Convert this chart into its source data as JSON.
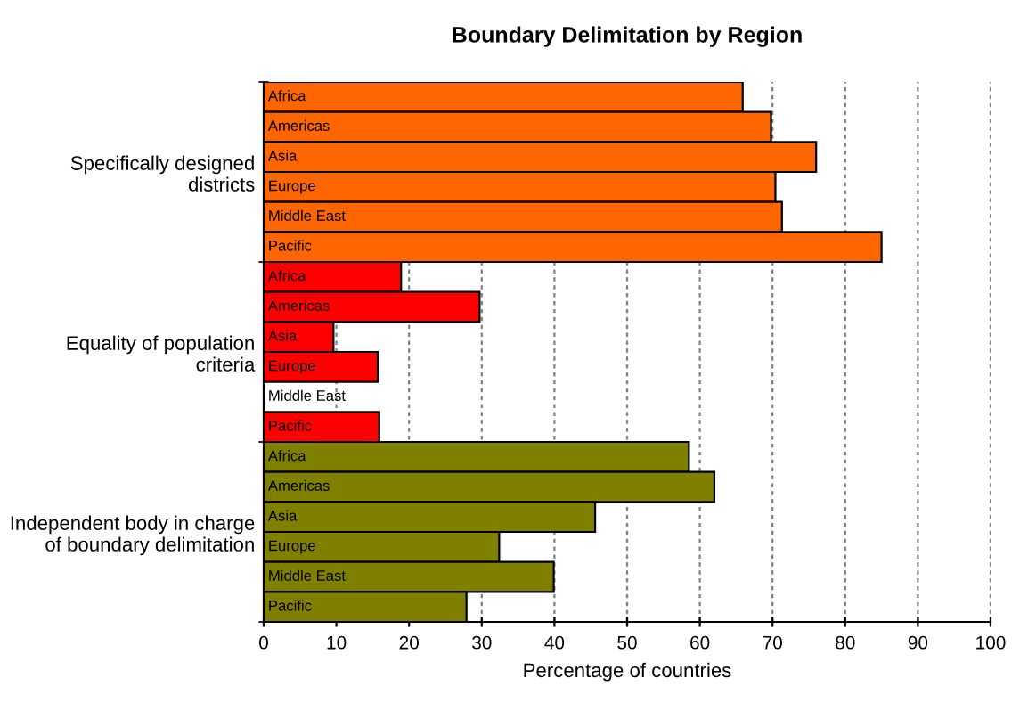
{
  "chart_data": {
    "type": "bar",
    "orientation": "horizontal",
    "title": "Boundary Delimitation by Region",
    "xlabel": "Percentage of countries",
    "categories": [
      "Specifically designed\ndistricts",
      "Equality of population\ncriteria",
      "Independent body in charge\nof boundary delimitation"
    ],
    "series": [
      {
        "name": "Africa",
        "colors": [
          "#ff6600",
          "#ff0000",
          "#808000"
        ],
        "values": [
          65.9,
          18.9,
          58.5
        ]
      },
      {
        "name": "Americas",
        "colors": [
          "#ff6600",
          "#ff0000",
          "#808000"
        ],
        "values": [
          69.8,
          29.7,
          62.0
        ]
      },
      {
        "name": "Asia",
        "colors": [
          "#ff6600",
          "#ff0000",
          "#808000"
        ],
        "values": [
          76.0,
          9.6,
          45.6
        ]
      },
      {
        "name": "Europe",
        "colors": [
          "#ff6600",
          "#ff0000",
          "#808000"
        ],
        "values": [
          70.4,
          15.7,
          32.4
        ]
      },
      {
        "name": "Middle East",
        "colors": [
          "#ff6600",
          "#ff0000",
          "#808000"
        ],
        "values": [
          71.3,
          0,
          39.9
        ]
      },
      {
        "name": "Pacific",
        "colors": [
          "#ff6600",
          "#ff0000",
          "#808000"
        ],
        "values": [
          85.0,
          15.9,
          27.9
        ]
      }
    ],
    "xlim": [
      0,
      100
    ],
    "xticks": [
      0,
      10,
      20,
      30,
      40,
      50,
      60,
      70,
      80,
      90,
      100
    ],
    "grid": "x",
    "legend": false
  }
}
